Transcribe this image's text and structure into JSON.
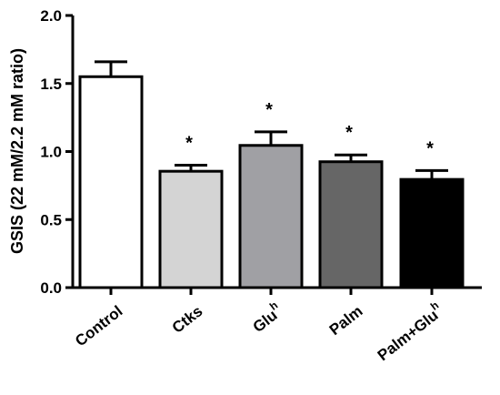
{
  "chart_data": {
    "type": "bar",
    "ylabel": "GSIS (22 mM/2.2 mM ratio)",
    "ylim": [
      0,
      2.0
    ],
    "yticks": [
      "0.0",
      "0.5",
      "1.0",
      "1.5",
      "2.0"
    ],
    "categories": [
      {
        "main": "Control",
        "sup": ""
      },
      {
        "main": "Ctks",
        "sup": ""
      },
      {
        "main": "Glu",
        "sup": "h"
      },
      {
        "main": "Palm",
        "sup": ""
      },
      {
        "main": "Palm+Glu",
        "sup": "h"
      }
    ],
    "values": [
      1.55,
      0.855,
      1.045,
      0.925,
      0.795
    ],
    "errors": [
      0.11,
      0.045,
      0.1,
      0.05,
      0.065
    ],
    "significance": [
      "",
      "*",
      "*",
      "*",
      "*"
    ],
    "bar_colors": [
      "#ffffff",
      "#d4d4d4",
      "#a0a0a4",
      "#666666",
      "#000000"
    ],
    "grid": false
  }
}
